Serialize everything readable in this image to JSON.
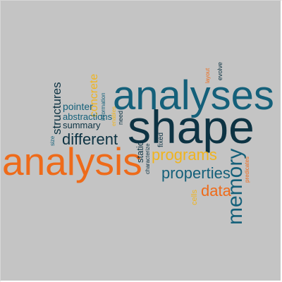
{
  "colors": {
    "background": "#c4c4c4",
    "teal": "#14607a",
    "navy": "#0d3343",
    "orange": "#ee6b1a",
    "yellow": "#f0b41e"
  },
  "words": {
    "analyses": "analyses",
    "shape": "shape",
    "analysis": "analysis",
    "different": "different",
    "programs": "programs",
    "properties": "properties",
    "data": "data",
    "memory": "memory",
    "structures": "structures",
    "concrete": "concrete",
    "pointer": "pointer",
    "abstractions": "abstractions",
    "summary": "summary",
    "information": "information",
    "enables": "enables",
    "need": "need",
    "size": "size",
    "static": "static",
    "characterize": "characterize",
    "fixed": "fixed",
    "cells": "cells",
    "predicates": "predicates",
    "layout": "layout",
    "evolve": "evolve"
  }
}
